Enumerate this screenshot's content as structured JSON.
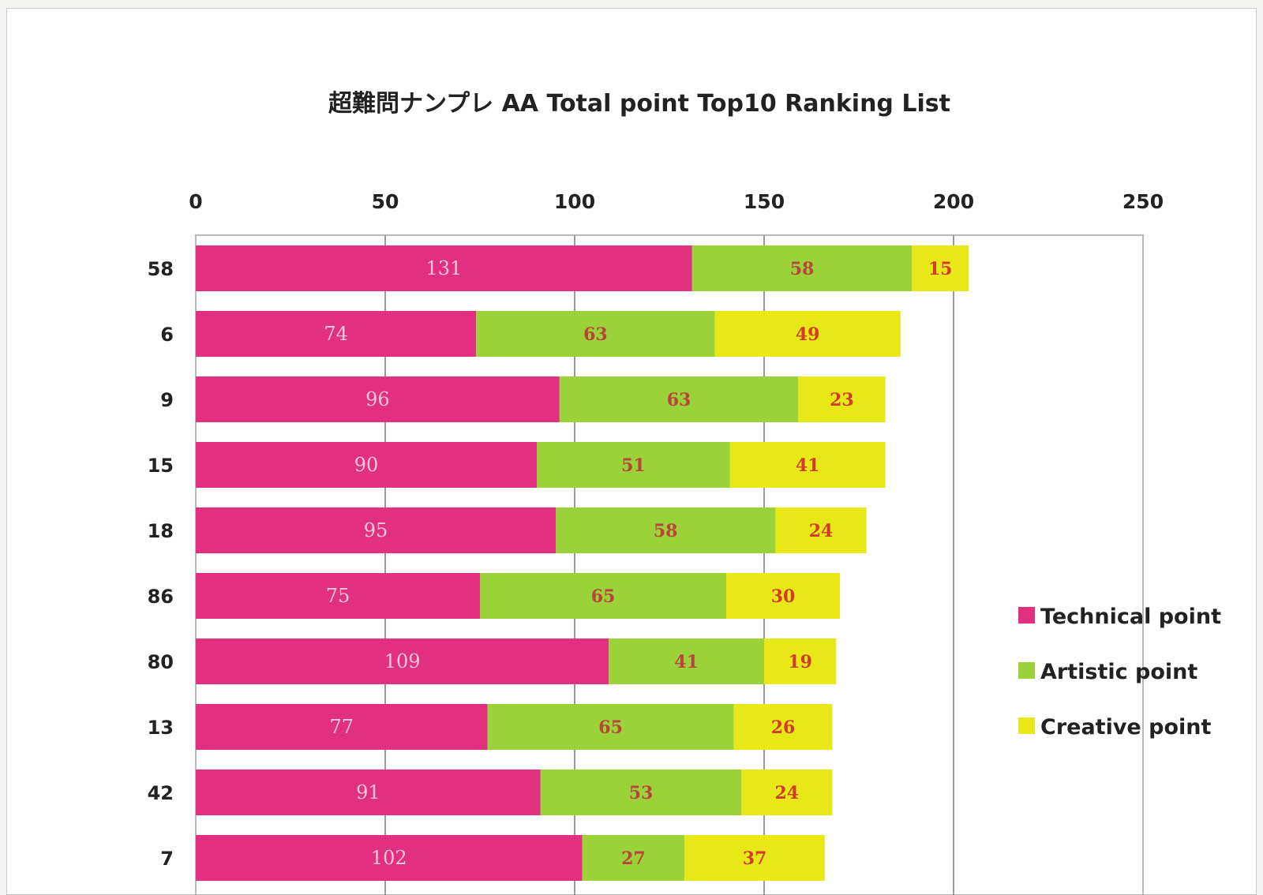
{
  "chart_data": {
    "type": "bar",
    "orientation": "horizontal",
    "stacked": true,
    "title": "超難問ナンプレ AA   Total point  Top10    Ranking List",
    "categories": [
      "58",
      "6",
      "9",
      "15",
      "18",
      "86",
      "80",
      "13",
      "42",
      "7"
    ],
    "series": [
      {
        "name": "Technical point",
        "color": "#e0307f",
        "values": [
          131,
          74,
          96,
          90,
          95,
          75,
          109,
          77,
          91,
          102
        ]
      },
      {
        "name": "Artistic point",
        "color": "#9bd23a",
        "values": [
          58,
          63,
          63,
          51,
          58,
          65,
          41,
          65,
          53,
          27
        ]
      },
      {
        "name": "Creative point",
        "color": "#e8e819",
        "values": [
          15,
          49,
          23,
          41,
          24,
          30,
          19,
          26,
          24,
          37
        ]
      }
    ],
    "xlim": [
      0,
      250
    ],
    "xticks": [
      0,
      50,
      100,
      150,
      200,
      250
    ],
    "x_axis_position": "top",
    "grid": true,
    "legend_position": "right",
    "data_labels": true
  }
}
